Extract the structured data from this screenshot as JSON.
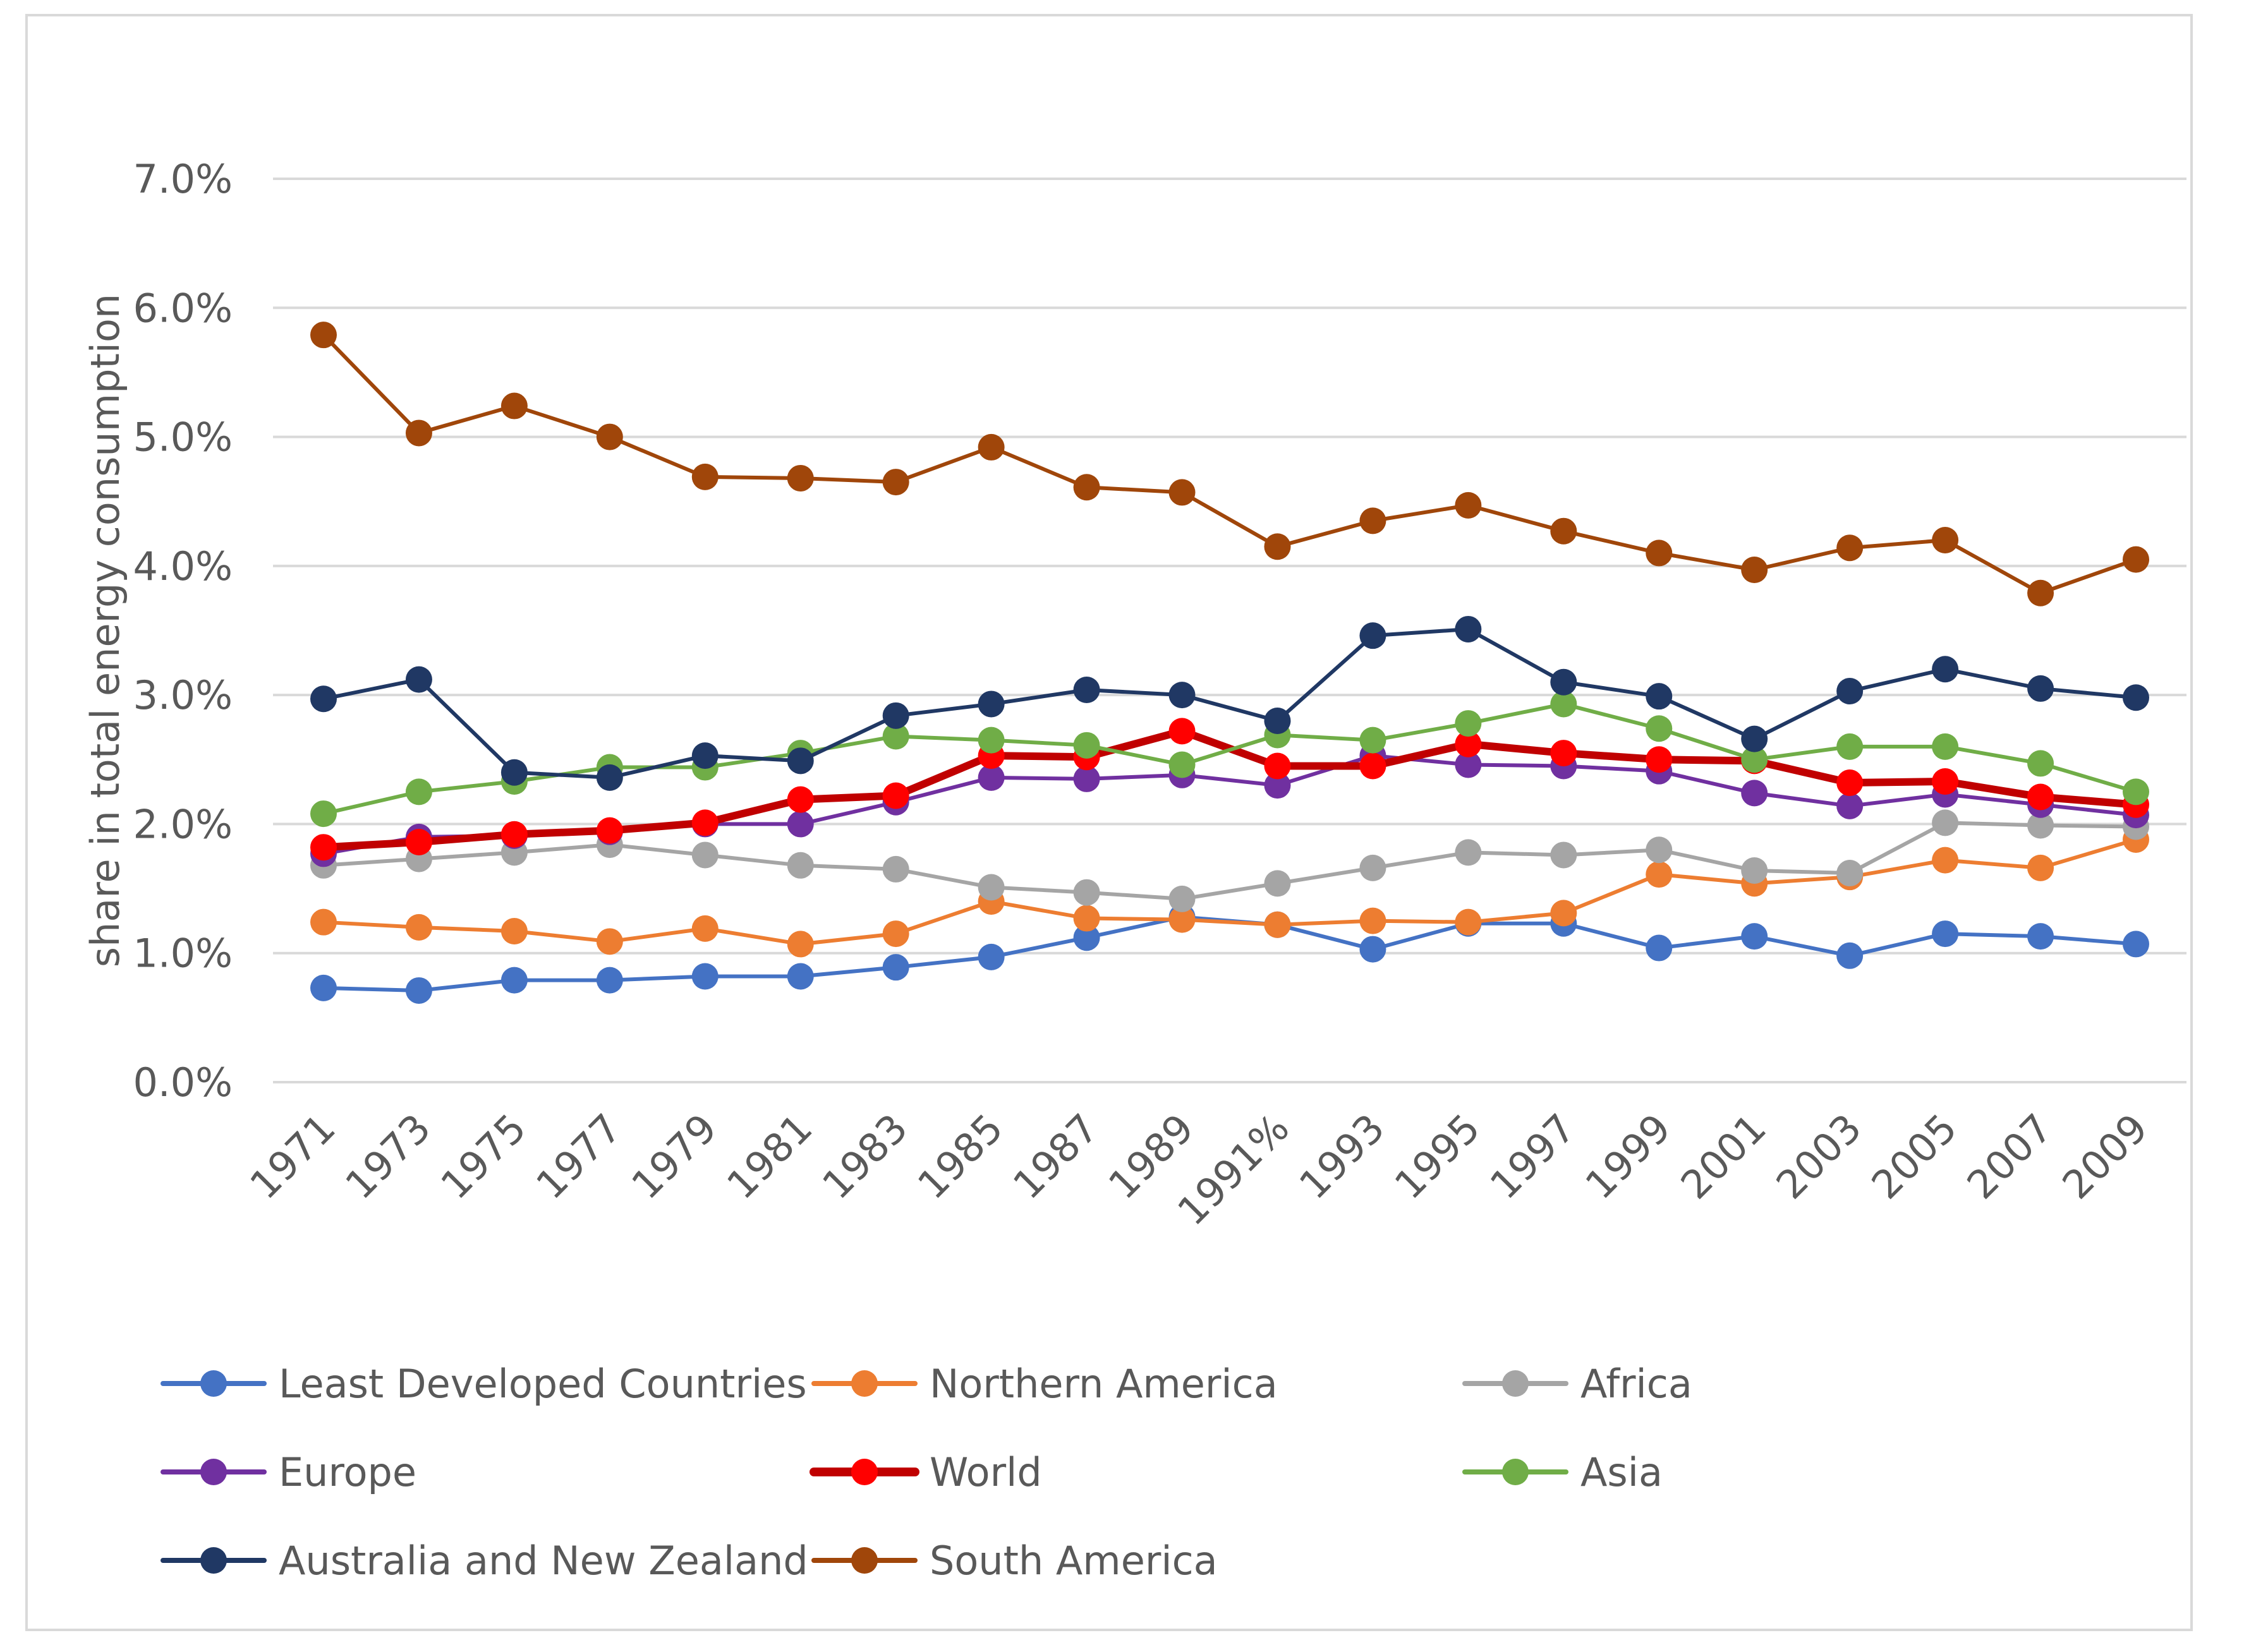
{
  "chart_data": {
    "type": "line",
    "title": "",
    "xlabel": "",
    "ylabel": "share in total energy consumption",
    "ylim": [
      0,
      7
    ],
    "yticks": [
      "0.0%",
      "1.0%",
      "2.0%",
      "3.0%",
      "4.0%",
      "5.0%",
      "6.0%",
      "7.0%"
    ],
    "grid": true,
    "legend_position": "bottom",
    "categories": [
      "1971",
      "1973",
      "1975",
      "1977",
      "1979",
      "1981",
      "1983",
      "1985",
      "1987",
      "1989",
      "1991%",
      "1993",
      "1995",
      "1997",
      "1999",
      "2001",
      "2003",
      "2005",
      "2007",
      "2009"
    ],
    "series": [
      {
        "name": "Least Developed Countries",
        "color": "#4472c4",
        "width": 6,
        "values": [
          0.73,
          0.71,
          0.79,
          0.79,
          0.82,
          0.82,
          0.89,
          0.97,
          1.12,
          1.28,
          1.22,
          1.03,
          1.23,
          1.23,
          1.04,
          1.13,
          0.98,
          1.15,
          1.13,
          1.07
        ]
      },
      {
        "name": "Northern America",
        "color": "#ed7d31",
        "width": 6,
        "values": [
          1.24,
          1.2,
          1.17,
          1.09,
          1.19,
          1.07,
          1.15,
          1.4,
          1.27,
          1.26,
          1.22,
          1.25,
          1.24,
          1.31,
          1.61,
          1.54,
          1.59,
          1.72,
          1.66,
          1.88
        ]
      },
      {
        "name": "Africa",
        "color": "#a5a5a5",
        "width": 6,
        "values": [
          1.68,
          1.73,
          1.78,
          1.84,
          1.76,
          1.68,
          1.65,
          1.51,
          1.47,
          1.42,
          1.54,
          1.66,
          1.78,
          1.76,
          1.8,
          1.64,
          1.62,
          2.01,
          1.99,
          1.98
        ]
      },
      {
        "name": "Europe",
        "color": "#7030a0",
        "width": 6,
        "values": [
          1.77,
          1.9,
          1.91,
          1.94,
          2.0,
          2.0,
          2.17,
          2.36,
          2.35,
          2.38,
          2.3,
          2.53,
          2.46,
          2.45,
          2.41,
          2.24,
          2.14,
          2.23,
          2.15,
          2.07
        ]
      },
      {
        "name": "World",
        "color": "#c00000",
        "marker": "#ff0000",
        "width": 12,
        "values": [
          1.82,
          1.86,
          1.92,
          1.95,
          2.01,
          2.19,
          2.22,
          2.53,
          2.52,
          2.72,
          2.45,
          2.45,
          2.62,
          2.55,
          2.5,
          2.49,
          2.32,
          2.33,
          2.21,
          2.15
        ]
      },
      {
        "name": "Asia",
        "color": "#70ad47",
        "width": 6,
        "values": [
          2.08,
          2.25,
          2.33,
          2.44,
          2.44,
          2.55,
          2.68,
          2.65,
          2.61,
          2.46,
          2.69,
          2.65,
          2.78,
          2.93,
          2.74,
          2.5,
          2.6,
          2.6,
          2.47,
          2.25
        ]
      },
      {
        "name": "Australia and New Zealand",
        "color": "#203864",
        "width": 6,
        "values": [
          2.97,
          3.12,
          2.4,
          2.36,
          2.53,
          2.49,
          2.84,
          2.93,
          3.04,
          3.0,
          2.8,
          3.46,
          3.51,
          3.1,
          2.99,
          2.66,
          3.03,
          3.2,
          3.05,
          2.98
        ]
      },
      {
        "name": "South America",
        "color": "#a0460a",
        "width": 6,
        "values": [
          5.79,
          5.03,
          5.24,
          5.0,
          4.69,
          4.68,
          4.65,
          4.92,
          4.61,
          4.57,
          4.15,
          4.35,
          4.47,
          4.27,
          4.1,
          3.97,
          4.14,
          4.2,
          3.79,
          4.05
        ]
      }
    ]
  }
}
